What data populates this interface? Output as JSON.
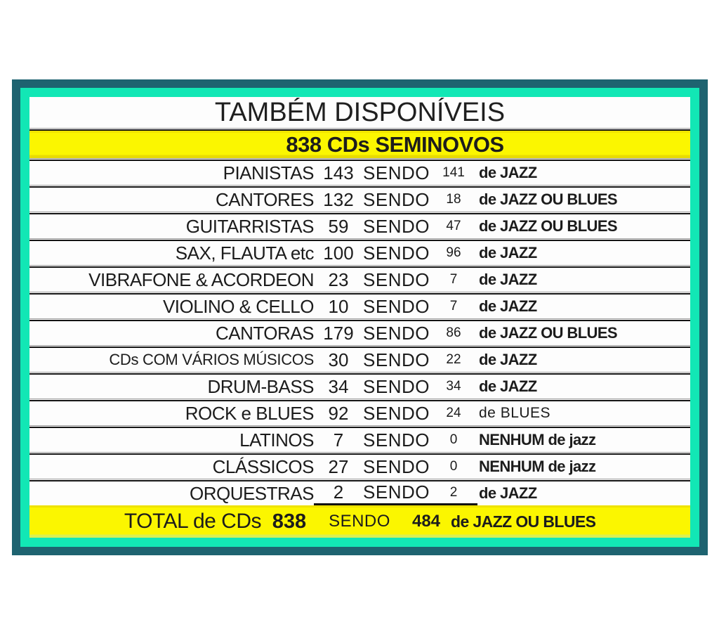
{
  "title": {
    "text": "TAMBÉM DISPONÍVEIS"
  },
  "header": {
    "text": "838 CDs SEMINOVOS"
  },
  "table": {
    "sendo_label": "SENDO",
    "columns": [
      "category",
      "count",
      "sendo",
      "jazz_count",
      "jazz_label"
    ],
    "rows": [
      {
        "category": "PIANISTAS",
        "count": "143",
        "jazz_count": "141",
        "label": "de JAZZ",
        "label_bold": true,
        "small": false,
        "sum": false
      },
      {
        "category": "CANTORES",
        "count": "132",
        "jazz_count": "18",
        "label": "de JAZZ OU BLUES",
        "label_bold": true,
        "small": false,
        "sum": false
      },
      {
        "category": "GUITARRISTAS",
        "count": "59",
        "jazz_count": "47",
        "label": "de JAZZ OU BLUES",
        "label_bold": true,
        "small": false,
        "sum": false
      },
      {
        "category": "SAX, FLAUTA etc",
        "count": "100",
        "jazz_count": "96",
        "label": "de JAZZ",
        "label_bold": true,
        "small": false,
        "sum": false
      },
      {
        "category": "VIBRAFONE & ACORDEON",
        "count": "23",
        "jazz_count": "7",
        "label": "de JAZZ",
        "label_bold": true,
        "small": false,
        "sum": false
      },
      {
        "category": "VIOLINO & CELLO",
        "count": "10",
        "jazz_count": "7",
        "label": "de JAZZ",
        "label_bold": true,
        "small": false,
        "sum": false
      },
      {
        "category": "CANTORAS",
        "count": "179",
        "jazz_count": "86",
        "label": "de JAZZ OU BLUES",
        "label_bold": true,
        "small": false,
        "sum": false
      },
      {
        "category": "CDs COM VÁRIOS MÚSICOS",
        "count": "30",
        "jazz_count": "22",
        "label": "de JAZZ",
        "label_bold": true,
        "small": true,
        "sum": false
      },
      {
        "category": "DRUM-BASS",
        "count": "34",
        "jazz_count": "34",
        "label": "de JAZZ",
        "label_bold": true,
        "small": false,
        "sum": false
      },
      {
        "category": "ROCK e BLUES",
        "count": "92",
        "jazz_count": "24",
        "label": "de  BLUES",
        "label_bold": false,
        "small": false,
        "sum": false
      },
      {
        "category": "LATINOS",
        "count": "7",
        "jazz_count": "0",
        "label": "NENHUM de jazz",
        "label_bold": true,
        "small": false,
        "sum": false
      },
      {
        "category": "CLÁSSICOS",
        "count": "27",
        "jazz_count": "0",
        "label": "NENHUM de jazz",
        "label_bold": true,
        "small": false,
        "sum": false
      },
      {
        "category": "ORQUESTRAS",
        "count": "2",
        "jazz_count": "2",
        "label": "de JAZZ",
        "label_bold": true,
        "small": false,
        "sum": true
      }
    ],
    "total": {
      "label": "TOTAL de CDs",
      "count": "838",
      "sendo": "SENDO",
      "jazz_count": "484",
      "suffix": "de JAZZ OU BLUES"
    }
  },
  "colors": {
    "frame_outer": "#1e6370",
    "frame_inner": "#12e7b5",
    "highlight_yellow": "#fbf600",
    "text": "#1c1c1c"
  }
}
